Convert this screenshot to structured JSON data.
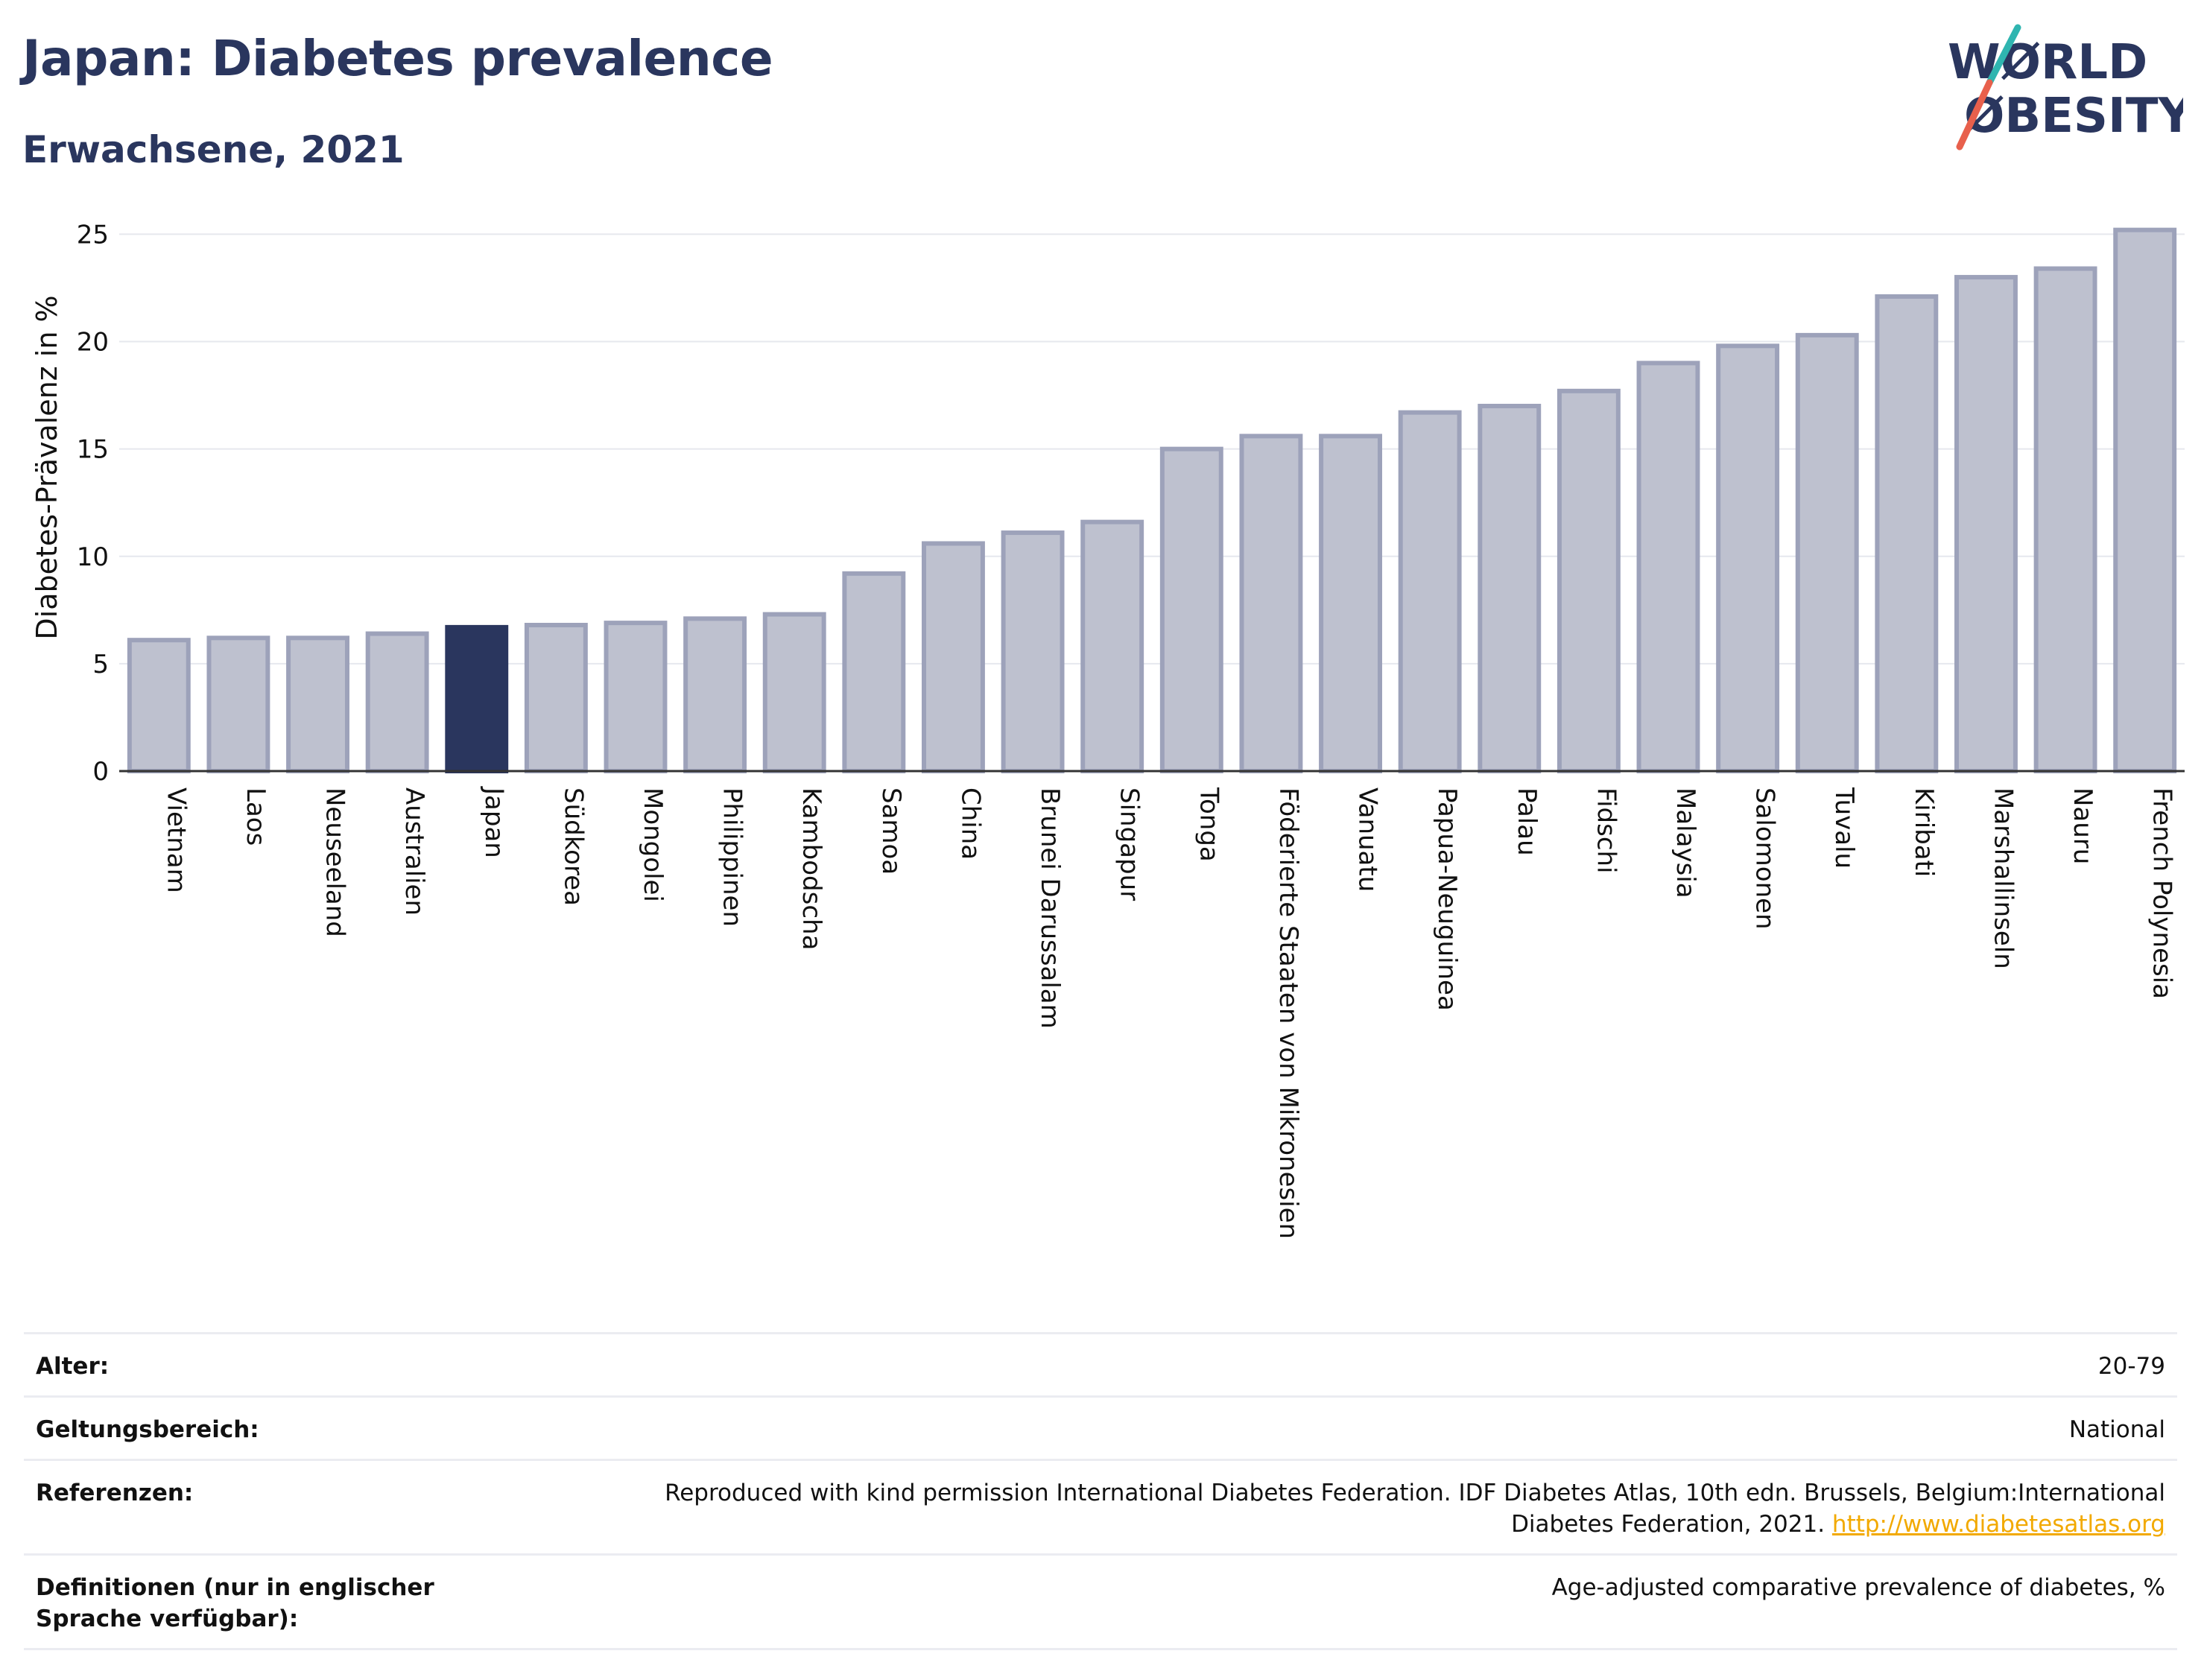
{
  "header": {
    "title": "Japan: Diabetes prevalence",
    "subtitle": "Erwachsene, 2021"
  },
  "logo": {
    "line1": "WØRLD",
    "line2": "ØBESITY",
    "text_color": "#2a365e",
    "slash_top_color": "#2fb5b0",
    "slash_bottom_color": "#e8604c"
  },
  "chart_data": {
    "type": "bar",
    "title": "",
    "xlabel": "",
    "ylabel": "Diabetes-Prävalenz in %",
    "ylim": [
      0,
      25.5
    ],
    "yticks": [
      0,
      5,
      10,
      15,
      20,
      25
    ],
    "grid": true,
    "highlight": "Japan",
    "colors": {
      "bar_fill": "#bec1cf",
      "bar_stroke": "#9da2ba",
      "highlight_fill": "#2a365e",
      "grid": "#e6e8ee",
      "axis": "#333333"
    },
    "categories": [
      "Vietnam",
      "Laos",
      "Neuseeland",
      "Australien",
      "Japan",
      "Südkorea",
      "Mongolei",
      "Philippinen",
      "Kambodscha",
      "Samoa",
      "China",
      "Brunei Darussalam",
      "Singapur",
      "Tonga",
      "Föderierte Staaten von Mikronesien",
      "Vanuatu",
      "Papua-Neuguinea",
      "Palau",
      "Fidschi",
      "Malaysia",
      "Salomonen",
      "Tuvalu",
      "Kiribati",
      "Marshallinseln",
      "Nauru",
      "French Polynesia"
    ],
    "values": [
      6.1,
      6.2,
      6.2,
      6.4,
      6.7,
      6.8,
      6.9,
      7.1,
      7.3,
      9.2,
      10.6,
      11.1,
      11.6,
      15.0,
      15.6,
      15.6,
      16.7,
      17.0,
      17.7,
      19.0,
      19.8,
      20.3,
      22.1,
      23.0,
      23.4,
      25.2
    ]
  },
  "footer": {
    "rows": [
      {
        "key": "Alter:",
        "value": "20-79"
      },
      {
        "key": "Geltungsbereich:",
        "value": "National"
      },
      {
        "key": "Referenzen:",
        "value_line1": "Reproduced with kind permission International Diabetes Federation.  IDF Diabetes Atlas, 10th edn. Brussels, Belgium:International",
        "value_line2": "Diabetes Federation, 2021.",
        "link": "http://www.diabetesatlas.org"
      },
      {
        "key": "Definitionen (nur in englischer Sprache verfügbar):",
        "value": "Age-adjusted comparative prevalence of diabetes, %"
      }
    ]
  }
}
